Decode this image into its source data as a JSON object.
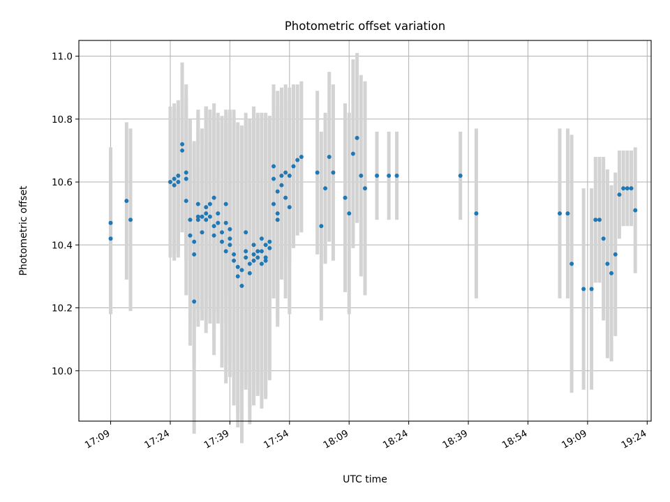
{
  "chart_data": {
    "type": "scatter",
    "title": "Photometric offset variation",
    "xlabel": "UTC time",
    "ylabel": "Photometric offset",
    "x_unit": "UTC time (HH:MM)",
    "xlim": [
      "17:01",
      "19:25"
    ],
    "ylim": [
      9.84,
      11.05
    ],
    "x_ticks": [
      "17:09",
      "17:24",
      "17:39",
      "17:54",
      "18:09",
      "18:24",
      "18:39",
      "18:54",
      "19:09",
      "19:24"
    ],
    "y_ticks": [
      10.0,
      10.2,
      10.4,
      10.6,
      10.8,
      11.0
    ],
    "y_tick_labels": [
      "10.0",
      "10.2",
      "10.4",
      "10.6",
      "10.8",
      "11.0"
    ],
    "grid": true,
    "legend": "none",
    "colors": {
      "points": "#1f77b4",
      "errorbars": "#d3d3d3",
      "grid": "#b0b0b0"
    },
    "series": [
      {
        "x": [
          "17:09",
          "17:09",
          "17:13",
          "17:14",
          "17:24",
          "17:25",
          "17:25",
          "17:26",
          "17:26",
          "17:27",
          "17:27",
          "17:28",
          "17:28",
          "17:28",
          "17:29",
          "17:29",
          "17:30",
          "17:30",
          "17:30",
          "17:31",
          "17:31",
          "17:31",
          "17:32",
          "17:32",
          "17:33",
          "17:33",
          "17:33",
          "17:34",
          "17:34",
          "17:35",
          "17:35",
          "17:35",
          "17:36",
          "17:36",
          "17:37",
          "17:37",
          "17:38",
          "17:38",
          "17:38",
          "17:39",
          "17:39",
          "17:39",
          "17:40",
          "17:40",
          "17:41",
          "17:41",
          "17:42",
          "17:42",
          "17:43",
          "17:43",
          "17:43",
          "17:44",
          "17:44",
          "17:45",
          "17:45",
          "17:45",
          "17:46",
          "17:46",
          "17:47",
          "17:47",
          "17:47",
          "17:48",
          "17:48",
          "17:48",
          "17:49",
          "17:49",
          "17:50",
          "17:50",
          "17:50",
          "17:51",
          "17:51",
          "17:51",
          "17:52",
          "17:52",
          "17:53",
          "17:53",
          "17:54",
          "17:54",
          "17:55",
          "17:56",
          "17:57",
          "18:01",
          "18:02",
          "18:03",
          "18:04",
          "18:05",
          "18:08",
          "18:09",
          "18:10",
          "18:11",
          "18:12",
          "18:13",
          "18:16",
          "18:19",
          "18:21",
          "18:37",
          "18:41",
          "19:02",
          "19:04",
          "19:05",
          "19:08",
          "19:10",
          "19:11",
          "19:12",
          "19:13",
          "19:14",
          "19:15",
          "19:16",
          "19:17",
          "19:18",
          "19:19",
          "19:20",
          "19:21"
        ],
        "y": [
          10.42,
          10.47,
          10.54,
          10.48,
          10.6,
          10.61,
          10.59,
          10.6,
          10.62,
          10.72,
          10.7,
          10.63,
          10.61,
          10.54,
          10.48,
          10.43,
          10.41,
          10.37,
          10.22,
          10.48,
          10.53,
          10.49,
          10.44,
          10.49,
          10.5,
          10.52,
          10.48,
          10.53,
          10.49,
          10.46,
          10.43,
          10.55,
          10.5,
          10.47,
          10.44,
          10.41,
          10.38,
          10.53,
          10.47,
          10.45,
          10.42,
          10.4,
          10.37,
          10.35,
          10.33,
          10.3,
          10.32,
          10.27,
          10.38,
          10.36,
          10.44,
          10.34,
          10.31,
          10.4,
          10.37,
          10.35,
          10.38,
          10.36,
          10.34,
          10.38,
          10.42,
          10.4,
          10.35,
          10.36,
          10.39,
          10.41,
          10.53,
          10.61,
          10.65,
          10.57,
          10.5,
          10.48,
          10.59,
          10.62,
          10.63,
          10.55,
          10.52,
          10.62,
          10.65,
          10.67,
          10.68,
          10.63,
          10.46,
          10.58,
          10.68,
          10.63,
          10.55,
          10.5,
          10.69,
          10.74,
          10.62,
          10.58,
          10.62,
          10.62,
          10.62,
          10.62,
          10.5,
          10.5,
          10.5,
          10.34,
          10.26,
          10.26,
          10.48,
          10.48,
          10.42,
          10.34,
          10.31,
          10.37,
          10.56,
          10.58,
          10.58,
          10.58,
          10.51
        ],
        "err": [
          0.24,
          0.24,
          0.25,
          0.29,
          0.24,
          0.24,
          0.24,
          0.24,
          0.24,
          0.26,
          0.26,
          0.28,
          0.26,
          0.3,
          0.32,
          0.35,
          0.32,
          0.35,
          0.42,
          0.34,
          0.3,
          0.3,
          0.28,
          0.28,
          0.34,
          0.32,
          0.36,
          0.3,
          0.34,
          0.36,
          0.38,
          0.3,
          0.32,
          0.32,
          0.36,
          0.4,
          0.42,
          0.3,
          0.32,
          0.38,
          0.4,
          0.42,
          0.46,
          0.46,
          0.46,
          0.48,
          0.46,
          0.5,
          0.42,
          0.42,
          0.38,
          0.46,
          0.48,
          0.44,
          0.46,
          0.46,
          0.44,
          0.44,
          0.46,
          0.44,
          0.4,
          0.42,
          0.44,
          0.44,
          0.42,
          0.4,
          0.3,
          0.26,
          0.26,
          0.32,
          0.34,
          0.34,
          0.3,
          0.28,
          0.28,
          0.32,
          0.34,
          0.28,
          0.26,
          0.24,
          0.24,
          0.26,
          0.3,
          0.24,
          0.27,
          0.28,
          0.3,
          0.32,
          0.3,
          0.27,
          0.32,
          0.34,
          0.14,
          0.14,
          0.14,
          0.14,
          0.27,
          0.27,
          0.27,
          0.41,
          0.32,
          0.32,
          0.2,
          0.2,
          0.26,
          0.3,
          0.28,
          0.26,
          0.14,
          0.12,
          0.12,
          0.12,
          0.2
        ]
      }
    ]
  }
}
